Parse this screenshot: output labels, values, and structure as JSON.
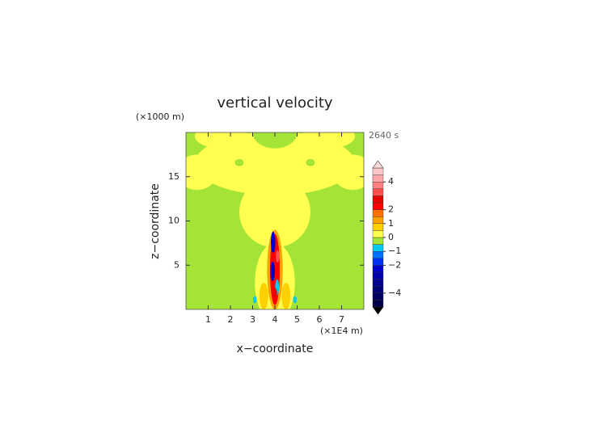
{
  "chart_data": {
    "type": "contour",
    "title": "vertical velocity",
    "annotation": "2640 s",
    "x_label": "x−coordinate",
    "x_unit": "(×1E4 m)",
    "y_label": "z−coordinate",
    "y_unit": "(×1000 m)",
    "xlim": [
      0,
      8
    ],
    "xticks": [
      1,
      2,
      3,
      4,
      5,
      6,
      7
    ],
    "ylim": [
      0,
      20
    ],
    "yticks": [
      5,
      10,
      15
    ],
    "background_value": -0.25,
    "levels": [
      -5,
      -4.5,
      -4,
      -3.5,
      -3,
      -2.5,
      -2,
      -1.5,
      -1,
      -0.5,
      0,
      0.5,
      1,
      1.5,
      2,
      2.5,
      3,
      3.5,
      4,
      4.5,
      5
    ],
    "colors": [
      "#00004a",
      "#000060",
      "#000078",
      "#000090",
      "#0000a8",
      "#0000c8",
      "#0030f0",
      "#0070ff",
      "#00c8f0",
      "#a4e436",
      "#ffff50",
      "#ffd000",
      "#ffa000",
      "#ff7000",
      "#ff0000",
      "#e80000",
      "#ff5050",
      "#ff8080",
      "#ffa8a8",
      "#ffc8c8"
    ],
    "under_color": "#000000",
    "over_color": "#ffd8d8",
    "colorbar_ticks": [
      {
        "value": -4,
        "label": "−4"
      },
      {
        "value": -2,
        "label": "−2"
      },
      {
        "value": -1,
        "label": "−1"
      },
      0,
      1,
      2,
      4
    ],
    "field": [
      {
        "x": 4,
        "z": 16.5,
        "rx": 3.6,
        "rz": 3.6,
        "value": 0.25
      },
      {
        "x": 4,
        "z": 11,
        "rx": 1.6,
        "rz": 4,
        "value": 0.25
      },
      {
        "x": 0.5,
        "z": 15.5,
        "rx": 0.9,
        "rz": 2,
        "value": 0.25
      },
      {
        "x": 7.5,
        "z": 15.5,
        "rx": 0.9,
        "rz": 2,
        "value": 0.25
      },
      {
        "x": 1.6,
        "z": 19.6,
        "rx": 1.2,
        "rz": 1.4,
        "value": 0.25
      },
      {
        "x": 6.4,
        "z": 19.6,
        "rx": 1.2,
        "rz": 1.4,
        "value": 0.25
      },
      {
        "x": 4,
        "z": 20,
        "rx": 1,
        "rz": 1.8,
        "value": -0.25
      },
      {
        "x": 2.4,
        "z": 16.6,
        "rx": 0.2,
        "rz": 0.4,
        "value": -0.25
      },
      {
        "x": 5.6,
        "z": 16.6,
        "rx": 0.2,
        "rz": 0.4,
        "value": -0.25
      },
      {
        "x": 4,
        "z": 3,
        "rx": 0.9,
        "rz": 4.5,
        "value": 0.25
      },
      {
        "x": 3.5,
        "z": 1.5,
        "rx": 0.2,
        "rz": 1.5,
        "value": 0.75
      },
      {
        "x": 4.5,
        "z": 1.5,
        "rx": 0.2,
        "rz": 1.5,
        "value": 0.75
      },
      {
        "x": 4,
        "z": 4.5,
        "rx": 0.35,
        "rz": 4.5,
        "value": 1.25
      },
      {
        "x": 4,
        "z": 4.5,
        "rx": 0.22,
        "rz": 4,
        "value": 2.25
      },
      {
        "x": 3.92,
        "z": 7.6,
        "rx": 0.1,
        "rz": 1.2,
        "value": -2.25
      },
      {
        "x": 3.9,
        "z": 4.3,
        "rx": 0.1,
        "rz": 1.1,
        "value": -2.25
      },
      {
        "x": 4.1,
        "z": 2.5,
        "rx": 0.09,
        "rz": 0.9,
        "value": -0.75
      },
      {
        "x": 4,
        "z": 1.8,
        "rx": 0.1,
        "rz": 0.6,
        "value": 2.75
      },
      {
        "x": 4.12,
        "z": 6,
        "rx": 0.08,
        "rz": 0.7,
        "value": 3.25
      },
      {
        "x": 3.1,
        "z": 1.1,
        "rx": 0.08,
        "rz": 0.4,
        "value": -0.75
      },
      {
        "x": 4.9,
        "z": 1.1,
        "rx": 0.08,
        "rz": 0.4,
        "value": -0.75
      }
    ]
  }
}
